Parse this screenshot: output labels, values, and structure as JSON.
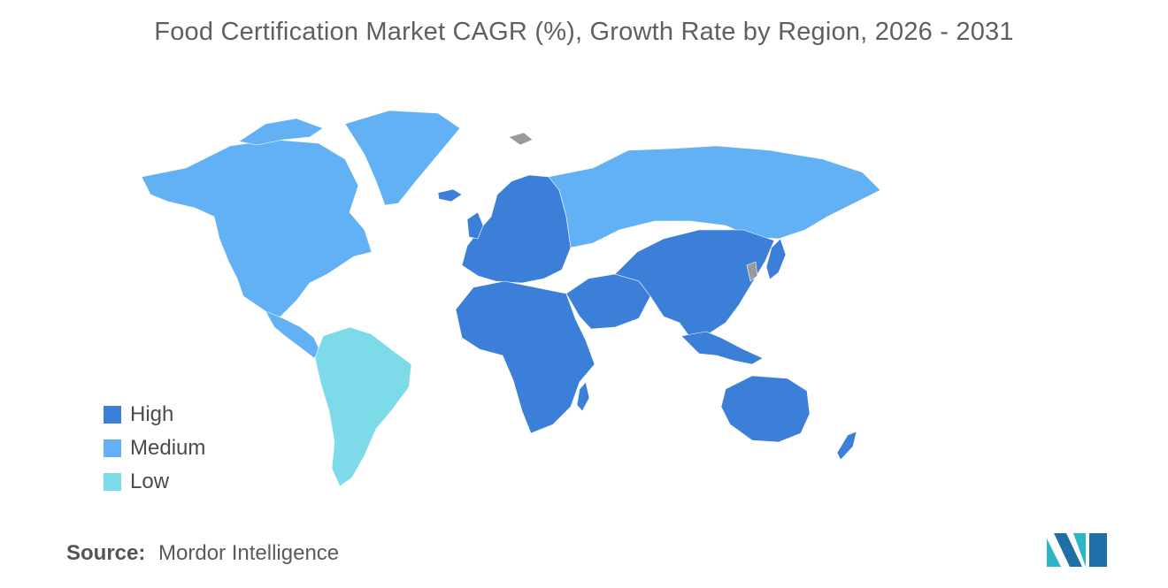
{
  "title": "Food Certification Market CAGR (%), Growth Rate by Region, 2026 - 2031",
  "legend": [
    {
      "label": "High",
      "color": "#3c7fd8"
    },
    {
      "label": "Medium",
      "color": "#63b1f5"
    },
    {
      "label": "Low",
      "color": "#7ddbe9"
    }
  ],
  "source": {
    "label": "Source:",
    "value": "Mordor Intelligence"
  },
  "colors": {
    "high": "#3c7fd8",
    "medium": "#63b1f5",
    "low": "#7ddbe9",
    "no_data": "#9a9a9a"
  },
  "regions": {
    "north_america": "medium",
    "greenland": "medium",
    "russia": "medium",
    "south_america": "low",
    "europe": "high",
    "africa": "high",
    "middle_east": "high",
    "asia": "high",
    "oceania": "high"
  }
}
